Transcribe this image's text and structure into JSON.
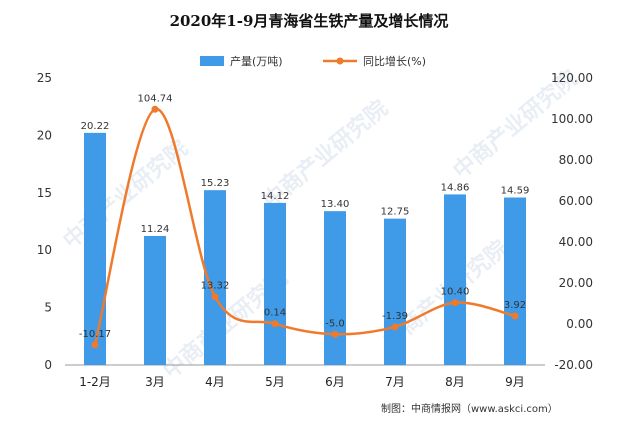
{
  "chart_data": {
    "type": "bar",
    "title": "2020年1-9月青海省生铁产量及增长情况",
    "categories": [
      "1-2月",
      "3月",
      "4月",
      "5月",
      "6月",
      "7月",
      "8月",
      "9月"
    ],
    "series": [
      {
        "name": "产量(万吨)",
        "type": "bar",
        "axis": "left",
        "color": "#3f9ae8",
        "values": [
          20.22,
          11.24,
          15.23,
          14.12,
          13.4,
          12.75,
          14.86,
          14.59
        ],
        "labels": [
          "20.22",
          "11.24",
          "15.23",
          "14.12",
          "13.40",
          "12.75",
          "14.86",
          "14.59"
        ]
      },
      {
        "name": "同比增长(%)",
        "type": "line",
        "axis": "right",
        "color": "#f07a2b",
        "values": [
          -10.17,
          104.74,
          13.32,
          0.14,
          -5.0,
          -1.39,
          10.4,
          3.92
        ],
        "labels": [
          "-10.17",
          "104.74",
          "13.32",
          "0.14",
          "-5.0",
          "-1.39",
          "10.40",
          "3.92"
        ]
      }
    ],
    "y_left": {
      "min": 0,
      "max": 25,
      "ticks": [
        "0",
        "5",
        "10",
        "15",
        "20",
        "25"
      ]
    },
    "y_right": {
      "min": -20,
      "max": 120,
      "ticks": [
        "-20.00",
        "0.00",
        "20.00",
        "40.00",
        "60.00",
        "80.00",
        "100.00",
        "120.00"
      ]
    },
    "legend_position": "top-center",
    "grid": false
  },
  "source": "制图：中商情报网（www.askci.com）",
  "watermark": {
    "text": "中商产业研究院"
  }
}
